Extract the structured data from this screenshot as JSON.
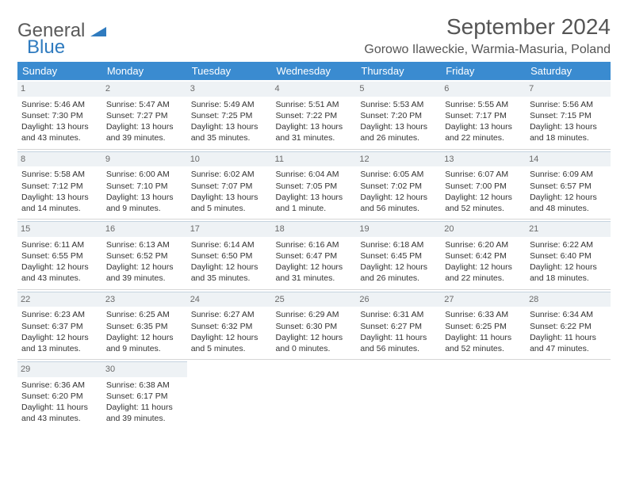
{
  "logo": {
    "line1": "General",
    "line2": "Blue"
  },
  "title": {
    "month": "September 2024",
    "location": "Gorowo Ilaweckie, Warmia-Masuria, Poland"
  },
  "header_bg": "#3a8bd0",
  "day_names": [
    "Sunday",
    "Monday",
    "Tuesday",
    "Wednesday",
    "Thursday",
    "Friday",
    "Saturday"
  ],
  "weeks": [
    [
      {
        "n": "1",
        "sunrise": "Sunrise: 5:46 AM",
        "sunset": "Sunset: 7:30 PM",
        "daylight": "Daylight: 13 hours and 43 minutes."
      },
      {
        "n": "2",
        "sunrise": "Sunrise: 5:47 AM",
        "sunset": "Sunset: 7:27 PM",
        "daylight": "Daylight: 13 hours and 39 minutes."
      },
      {
        "n": "3",
        "sunrise": "Sunrise: 5:49 AM",
        "sunset": "Sunset: 7:25 PM",
        "daylight": "Daylight: 13 hours and 35 minutes."
      },
      {
        "n": "4",
        "sunrise": "Sunrise: 5:51 AM",
        "sunset": "Sunset: 7:22 PM",
        "daylight": "Daylight: 13 hours and 31 minutes."
      },
      {
        "n": "5",
        "sunrise": "Sunrise: 5:53 AM",
        "sunset": "Sunset: 7:20 PM",
        "daylight": "Daylight: 13 hours and 26 minutes."
      },
      {
        "n": "6",
        "sunrise": "Sunrise: 5:55 AM",
        "sunset": "Sunset: 7:17 PM",
        "daylight": "Daylight: 13 hours and 22 minutes."
      },
      {
        "n": "7",
        "sunrise": "Sunrise: 5:56 AM",
        "sunset": "Sunset: 7:15 PM",
        "daylight": "Daylight: 13 hours and 18 minutes."
      }
    ],
    [
      {
        "n": "8",
        "sunrise": "Sunrise: 5:58 AM",
        "sunset": "Sunset: 7:12 PM",
        "daylight": "Daylight: 13 hours and 14 minutes."
      },
      {
        "n": "9",
        "sunrise": "Sunrise: 6:00 AM",
        "sunset": "Sunset: 7:10 PM",
        "daylight": "Daylight: 13 hours and 9 minutes."
      },
      {
        "n": "10",
        "sunrise": "Sunrise: 6:02 AM",
        "sunset": "Sunset: 7:07 PM",
        "daylight": "Daylight: 13 hours and 5 minutes."
      },
      {
        "n": "11",
        "sunrise": "Sunrise: 6:04 AM",
        "sunset": "Sunset: 7:05 PM",
        "daylight": "Daylight: 13 hours and 1 minute."
      },
      {
        "n": "12",
        "sunrise": "Sunrise: 6:05 AM",
        "sunset": "Sunset: 7:02 PM",
        "daylight": "Daylight: 12 hours and 56 minutes."
      },
      {
        "n": "13",
        "sunrise": "Sunrise: 6:07 AM",
        "sunset": "Sunset: 7:00 PM",
        "daylight": "Daylight: 12 hours and 52 minutes."
      },
      {
        "n": "14",
        "sunrise": "Sunrise: 6:09 AM",
        "sunset": "Sunset: 6:57 PM",
        "daylight": "Daylight: 12 hours and 48 minutes."
      }
    ],
    [
      {
        "n": "15",
        "sunrise": "Sunrise: 6:11 AM",
        "sunset": "Sunset: 6:55 PM",
        "daylight": "Daylight: 12 hours and 43 minutes."
      },
      {
        "n": "16",
        "sunrise": "Sunrise: 6:13 AM",
        "sunset": "Sunset: 6:52 PM",
        "daylight": "Daylight: 12 hours and 39 minutes."
      },
      {
        "n": "17",
        "sunrise": "Sunrise: 6:14 AM",
        "sunset": "Sunset: 6:50 PM",
        "daylight": "Daylight: 12 hours and 35 minutes."
      },
      {
        "n": "18",
        "sunrise": "Sunrise: 6:16 AM",
        "sunset": "Sunset: 6:47 PM",
        "daylight": "Daylight: 12 hours and 31 minutes."
      },
      {
        "n": "19",
        "sunrise": "Sunrise: 6:18 AM",
        "sunset": "Sunset: 6:45 PM",
        "daylight": "Daylight: 12 hours and 26 minutes."
      },
      {
        "n": "20",
        "sunrise": "Sunrise: 6:20 AM",
        "sunset": "Sunset: 6:42 PM",
        "daylight": "Daylight: 12 hours and 22 minutes."
      },
      {
        "n": "21",
        "sunrise": "Sunrise: 6:22 AM",
        "sunset": "Sunset: 6:40 PM",
        "daylight": "Daylight: 12 hours and 18 minutes."
      }
    ],
    [
      {
        "n": "22",
        "sunrise": "Sunrise: 6:23 AM",
        "sunset": "Sunset: 6:37 PM",
        "daylight": "Daylight: 12 hours and 13 minutes."
      },
      {
        "n": "23",
        "sunrise": "Sunrise: 6:25 AM",
        "sunset": "Sunset: 6:35 PM",
        "daylight": "Daylight: 12 hours and 9 minutes."
      },
      {
        "n": "24",
        "sunrise": "Sunrise: 6:27 AM",
        "sunset": "Sunset: 6:32 PM",
        "daylight": "Daylight: 12 hours and 5 minutes."
      },
      {
        "n": "25",
        "sunrise": "Sunrise: 6:29 AM",
        "sunset": "Sunset: 6:30 PM",
        "daylight": "Daylight: 12 hours and 0 minutes."
      },
      {
        "n": "26",
        "sunrise": "Sunrise: 6:31 AM",
        "sunset": "Sunset: 6:27 PM",
        "daylight": "Daylight: 11 hours and 56 minutes."
      },
      {
        "n": "27",
        "sunrise": "Sunrise: 6:33 AM",
        "sunset": "Sunset: 6:25 PM",
        "daylight": "Daylight: 11 hours and 52 minutes."
      },
      {
        "n": "28",
        "sunrise": "Sunrise: 6:34 AM",
        "sunset": "Sunset: 6:22 PM",
        "daylight": "Daylight: 11 hours and 47 minutes."
      }
    ],
    [
      {
        "n": "29",
        "sunrise": "Sunrise: 6:36 AM",
        "sunset": "Sunset: 6:20 PM",
        "daylight": "Daylight: 11 hours and 43 minutes."
      },
      {
        "n": "30",
        "sunrise": "Sunrise: 6:38 AM",
        "sunset": "Sunset: 6:17 PM",
        "daylight": "Daylight: 11 hours and 39 minutes."
      },
      {
        "empty": true
      },
      {
        "empty": true
      },
      {
        "empty": true
      },
      {
        "empty": true
      },
      {
        "empty": true
      }
    ]
  ]
}
